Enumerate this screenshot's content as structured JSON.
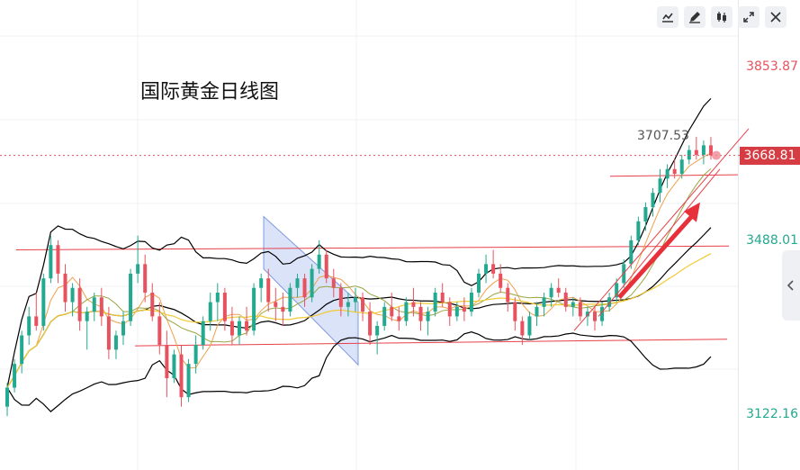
{
  "title": "国际黄金日线图",
  "toolbar": [
    {
      "icon": "indicator-icon"
    },
    {
      "icon": "draw-pen-icon"
    },
    {
      "icon": "candlestick-icon"
    },
    {
      "icon": "fullscreen-icon"
    },
    {
      "icon": "close-icon"
    }
  ],
  "colors": {
    "up": "#23a98f",
    "down": "#e8525f",
    "bollinger": "#000000",
    "ma_short": "#f0a04b",
    "ma_mid": "#9aa542",
    "ma_long": "#f2c935",
    "trend_line": "#e8404a",
    "channel_fill": "#aec2f0",
    "current_price_bg": "#d63c44"
  },
  "chart_data": {
    "type": "candlestick",
    "title": "国际黄金日线图",
    "y_axis": {
      "ylim": [
        3020,
        3920
      ],
      "tick_labels": [
        {
          "value": 3853.87,
          "text": "3853.87",
          "color": "#e8525f"
        },
        {
          "value": 3488.01,
          "text": "3488.01",
          "color": "#23a98f"
        },
        {
          "value": 3122.16,
          "text": "3122.16",
          "color": "#23a98f"
        }
      ]
    },
    "current_price": {
      "value": 3668.81,
      "text": "3668.81"
    },
    "peak_annotation": {
      "value": 3707.53,
      "text": "3707.53"
    },
    "ohlc": [
      [
        3140,
        3190,
        3120,
        3180
      ],
      [
        3180,
        3240,
        3170,
        3230
      ],
      [
        3230,
        3300,
        3210,
        3290
      ],
      [
        3290,
        3350,
        3270,
        3330
      ],
      [
        3330,
        3380,
        3300,
        3310
      ],
      [
        3310,
        3420,
        3300,
        3410
      ],
      [
        3410,
        3500,
        3400,
        3480
      ],
      [
        3480,
        3490,
        3400,
        3420
      ],
      [
        3420,
        3440,
        3340,
        3360
      ],
      [
        3360,
        3400,
        3330,
        3390
      ],
      [
        3390,
        3410,
        3300,
        3320
      ],
      [
        3320,
        3350,
        3260,
        3340
      ],
      [
        3340,
        3380,
        3320,
        3370
      ],
      [
        3370,
        3390,
        3310,
        3330
      ],
      [
        3330,
        3350,
        3240,
        3260
      ],
      [
        3260,
        3300,
        3240,
        3290
      ],
      [
        3290,
        3340,
        3270,
        3320
      ],
      [
        3320,
        3430,
        3310,
        3420
      ],
      [
        3420,
        3500,
        3400,
        3440
      ],
      [
        3440,
        3460,
        3360,
        3380
      ],
      [
        3380,
        3400,
        3320,
        3330
      ],
      [
        3330,
        3360,
        3250,
        3270
      ],
      [
        3270,
        3300,
        3160,
        3200
      ],
      [
        3200,
        3260,
        3190,
        3250
      ],
      [
        3250,
        3270,
        3140,
        3160
      ],
      [
        3160,
        3240,
        3150,
        3230
      ],
      [
        3230,
        3290,
        3210,
        3270
      ],
      [
        3270,
        3330,
        3260,
        3320
      ],
      [
        3320,
        3380,
        3300,
        3360
      ],
      [
        3360,
        3400,
        3320,
        3380
      ],
      [
        3380,
        3390,
        3300,
        3320
      ],
      [
        3320,
        3350,
        3270,
        3290
      ],
      [
        3290,
        3330,
        3270,
        3320
      ],
      [
        3320,
        3350,
        3290,
        3300
      ],
      [
        3300,
        3400,
        3290,
        3390
      ],
      [
        3390,
        3420,
        3360,
        3410
      ],
      [
        3410,
        3430,
        3340,
        3360
      ],
      [
        3360,
        3390,
        3320,
        3350
      ],
      [
        3350,
        3380,
        3310,
        3340
      ],
      [
        3340,
        3400,
        3330,
        3390
      ],
      [
        3390,
        3420,
        3370,
        3410
      ],
      [
        3410,
        3420,
        3350,
        3370
      ],
      [
        3370,
        3440,
        3360,
        3430
      ],
      [
        3430,
        3490,
        3420,
        3460
      ],
      [
        3460,
        3470,
        3400,
        3410
      ],
      [
        3410,
        3430,
        3370,
        3390
      ],
      [
        3390,
        3400,
        3330,
        3350
      ],
      [
        3350,
        3380,
        3330,
        3360
      ],
      [
        3360,
        3390,
        3340,
        3370
      ],
      [
        3370,
        3380,
        3320,
        3340
      ],
      [
        3340,
        3360,
        3270,
        3290
      ],
      [
        3290,
        3320,
        3250,
        3310
      ],
      [
        3310,
        3360,
        3300,
        3350
      ],
      [
        3350,
        3380,
        3320,
        3330
      ],
      [
        3330,
        3350,
        3300,
        3320
      ],
      [
        3320,
        3370,
        3310,
        3360
      ],
      [
        3360,
        3390,
        3330,
        3350
      ],
      [
        3350,
        3360,
        3300,
        3320
      ],
      [
        3320,
        3350,
        3290,
        3340
      ],
      [
        3340,
        3390,
        3330,
        3380
      ],
      [
        3380,
        3400,
        3350,
        3360
      ],
      [
        3360,
        3370,
        3310,
        3330
      ],
      [
        3330,
        3360,
        3320,
        3350
      ],
      [
        3350,
        3370,
        3320,
        3340
      ],
      [
        3340,
        3390,
        3330,
        3380
      ],
      [
        3380,
        3430,
        3370,
        3420
      ],
      [
        3420,
        3460,
        3400,
        3440
      ],
      [
        3440,
        3470,
        3410,
        3420
      ],
      [
        3420,
        3440,
        3380,
        3390
      ],
      [
        3390,
        3400,
        3340,
        3360
      ],
      [
        3360,
        3370,
        3300,
        3320
      ],
      [
        3320,
        3330,
        3270,
        3290
      ],
      [
        3290,
        3340,
        3280,
        3330
      ],
      [
        3330,
        3360,
        3310,
        3350
      ],
      [
        3350,
        3380,
        3330,
        3370
      ],
      [
        3370,
        3400,
        3350,
        3390
      ],
      [
        3390,
        3410,
        3370,
        3380
      ],
      [
        3380,
        3390,
        3340,
        3350
      ],
      [
        3350,
        3370,
        3330,
        3360
      ],
      [
        3360,
        3370,
        3320,
        3330
      ],
      [
        3330,
        3350,
        3310,
        3340
      ],
      [
        3340,
        3350,
        3300,
        3320
      ],
      [
        3320,
        3360,
        3310,
        3350
      ],
      [
        3350,
        3380,
        3340,
        3370
      ],
      [
        3370,
        3410,
        3360,
        3400
      ],
      [
        3400,
        3450,
        3390,
        3440
      ],
      [
        3440,
        3500,
        3430,
        3490
      ],
      [
        3490,
        3540,
        3480,
        3530
      ],
      [
        3530,
        3570,
        3510,
        3560
      ],
      [
        3560,
        3600,
        3540,
        3590
      ],
      [
        3590,
        3640,
        3570,
        3620
      ],
      [
        3620,
        3650,
        3600,
        3640
      ],
      [
        3640,
        3660,
        3620,
        3630
      ],
      [
        3630,
        3670,
        3620,
        3660
      ],
      [
        3660,
        3690,
        3650,
        3680
      ],
      [
        3680,
        3708,
        3660,
        3670
      ],
      [
        3670,
        3700,
        3650,
        3690
      ],
      [
        3690,
        3707.53,
        3660,
        3668.81
      ]
    ]
  }
}
